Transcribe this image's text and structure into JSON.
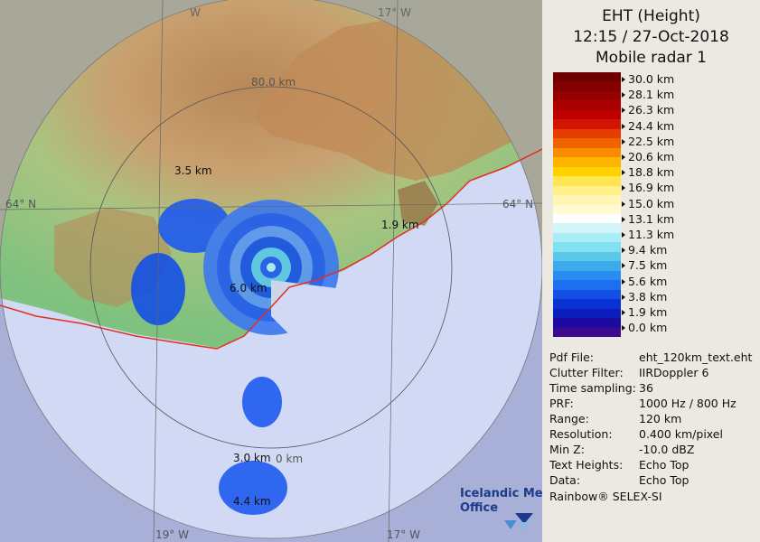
{
  "panel": {
    "title": "EHT (Height)",
    "datetime": "12:15 / 27-Oct-2018",
    "radar": "Mobile radar 1",
    "footer": "Rainbow® SELEX-SI"
  },
  "colorbar": {
    "labels": [
      "30.0 km",
      "28.1 km",
      "26.3 km",
      "24.4 km",
      "22.5 km",
      "20.6 km",
      "18.8 km",
      "16.9 km",
      "15.0 km",
      "13.1 km",
      "11.3 km",
      "9.4 km",
      "7.5 km",
      "5.6 km",
      "3.8 km",
      "1.9 km",
      "0.0 km"
    ],
    "colors": [
      "#6e0000",
      "#820000",
      "#960000",
      "#aa0000",
      "#be0000",
      "#d21400",
      "#e63c00",
      "#f06400",
      "#fa8c00",
      "#ffb400",
      "#ffd200",
      "#ffe650",
      "#fff08c",
      "#fff5b4",
      "#fffad2",
      "#ffffff",
      "#d2f5fa",
      "#aaeef5",
      "#82e1f0",
      "#5ac8eb",
      "#3caaeb",
      "#288cf0",
      "#1e6ef0",
      "#1450e6",
      "#0a32d2",
      "#0a1ebe",
      "#1e0aa0",
      "#3c0a8c"
    ]
  },
  "info": [
    {
      "key": "Pdf File:",
      "value": "eht_120km_text.eht"
    },
    {
      "key": "Clutter Filter:",
      "value": "IIRDoppler 6"
    },
    {
      "key": "Time sampling:",
      "value": "36"
    },
    {
      "key": "PRF:",
      "value": "1000 Hz / 800 Hz"
    },
    {
      "key": "Range:",
      "value": "120 km"
    },
    {
      "key": "Resolution:",
      "value": "0.400 km/pixel"
    },
    {
      "key": "Min Z:",
      "value": "-10.0 dBZ"
    },
    {
      "key": "Text Heights:",
      "value": "Echo Top"
    },
    {
      "key": "Data:",
      "value": "Echo Top"
    }
  ],
  "map": {
    "graticule": {
      "lon_top_left": "W",
      "lon_top_right": "17° W",
      "lon_bottom_left": "19° W",
      "lon_bottom_right": "17° W",
      "lat_left": "64° N",
      "lat_right": "64° N"
    },
    "range_rings": [
      "80.0 km",
      "0 km"
    ],
    "height_labels": [
      "3.5 km",
      "1.9 km",
      "6.0 km",
      "3.0 km",
      "4.4 km"
    ],
    "logo_line1": "Icelandic Met",
    "logo_line2": "Office",
    "colors": {
      "land": "#8fcf8f",
      "highland": "#c8a070",
      "sea": "#d2d9f5",
      "outside": "#a8b0d8",
      "coast": "#e03020",
      "echo": "#1e5af0"
    }
  }
}
